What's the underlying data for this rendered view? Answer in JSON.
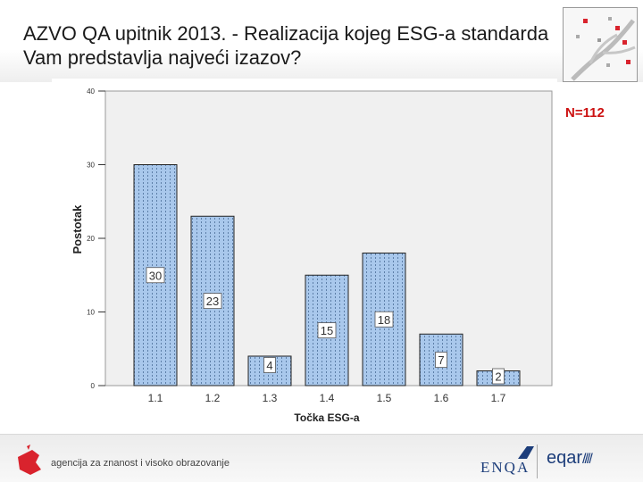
{
  "title": "AZVO QA upitnik 2013. - Realizacija kojeg ESG-a standarda Vam predstavlja najveći izazov?",
  "n_label": "N=112",
  "footer": {
    "org_text": "agencija za znanost i visoko obrazovanje",
    "enqa_text": "ENQA",
    "eqar_text": "eqar",
    "eqar_slashes": "////"
  },
  "colors": {
    "bar_fill": "#a9c8ec",
    "bar_stroke": "#222222",
    "plot_bg": "#f0f0f0",
    "n_label": "#cc1111",
    "brand_red": "#d9232d",
    "brand_blue": "#1c3d7a"
  },
  "icons": {
    "agency_logo": "azvo-logo-icon",
    "corner_logo": "tree-network-icon"
  },
  "chart_data": {
    "type": "bar",
    "categories": [
      "1.1",
      "1.2",
      "1.3",
      "1.4",
      "1.5",
      "1.6",
      "1.7"
    ],
    "values": [
      30,
      23,
      4,
      15,
      18,
      7,
      2
    ],
    "data_labels": [
      "30",
      "23",
      "4",
      "15",
      "18",
      "7",
      "2"
    ],
    "xlabel": "Točka ESG-a",
    "ylabel": "Postotak",
    "ylim": [
      0,
      40
    ],
    "yticks": [
      "0",
      "10",
      "20",
      "30",
      "40"
    ],
    "grid": false,
    "legend": "none"
  }
}
